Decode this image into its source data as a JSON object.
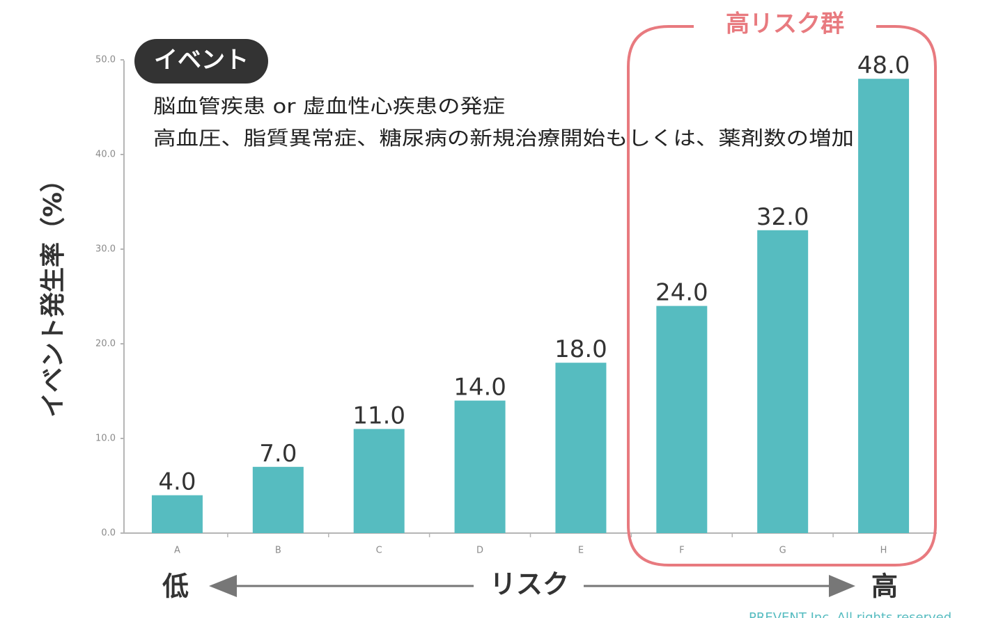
{
  "chart_data": {
    "type": "bar",
    "categories": [
      "A",
      "B",
      "C",
      "D",
      "E",
      "F",
      "G",
      "H"
    ],
    "values": [
      4.0,
      7.0,
      11.0,
      14.0,
      18.0,
      24.0,
      32.0,
      48.0
    ],
    "value_labels": [
      "4.0",
      "7.0",
      "11.0",
      "14.0",
      "18.0",
      "24.0",
      "32.0",
      "48.0"
    ],
    "ylabel": "イベント発生率（%）",
    "ylim": [
      0,
      50
    ],
    "yticks": [
      "0.0",
      "10.0",
      "20.0",
      "30.0",
      "40.0",
      "50.0"
    ],
    "grid": false,
    "bar_color": "#56bcc0",
    "x_axis_low": "低",
    "x_axis_middle": "リスク",
    "x_axis_high": "高"
  },
  "annotations": {
    "event_badge": "イベント",
    "event_line1": "脳血管疾患 or 虚血性心疾患の発症",
    "event_line2": "高血圧、脂質異常症、糖尿病の新規治療開始もしくは、薬剤数の増加",
    "high_risk_label": "高リスク群",
    "high_risk_color": "#e87a7f",
    "high_risk_categories": [
      "F",
      "G",
      "H"
    ]
  },
  "footer": {
    "copyright": "PREVENT Inc. All rights reserved.",
    "copyright_color": "#56bcc0"
  }
}
